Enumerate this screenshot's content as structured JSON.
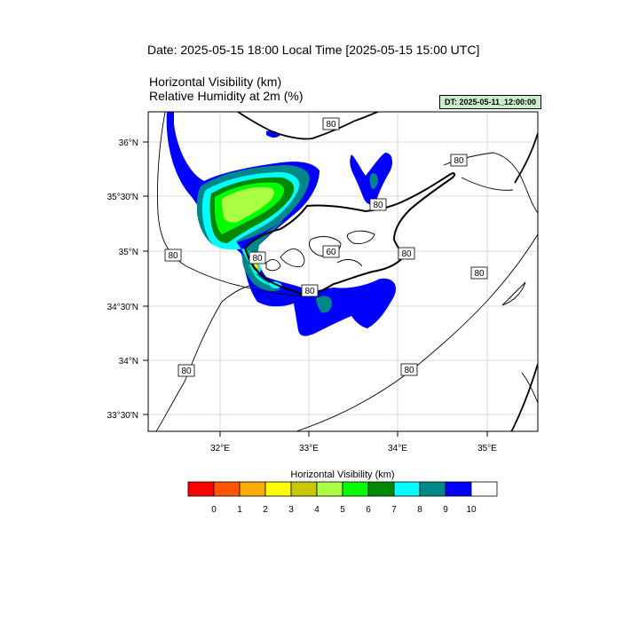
{
  "header": {
    "date_title": "Date: 2025-05-15  18:00 Local Time [2025-05-15  15:00 UTC]",
    "variable_1": "Horizontal Visibility   (km)",
    "variable_2": "Relative Humidity at 2m   (%)",
    "dt_badge": "DT: 2025-05-11_12:00:00"
  },
  "map": {
    "lon_labels": [
      "32°E",
      "33°E",
      "34°E",
      "35°E"
    ],
    "lat_labels": [
      "36°N",
      "35°30'N",
      "35°N",
      "34°30'N",
      "34°N",
      "33°30'N"
    ],
    "contour_labels": [
      "80",
      "80",
      "80",
      "80",
      "60",
      "80",
      "80",
      "80",
      "80",
      "80",
      "80"
    ]
  },
  "colorbar": {
    "title": "Horizontal Visibility  (km)",
    "labels": [
      "0",
      "1",
      "2",
      "3",
      "4",
      "5",
      "6",
      "7",
      "8",
      "9",
      "10"
    ],
    "colors": [
      "#ff0000",
      "#ff5500",
      "#ffaa00",
      "#ffff00",
      "#c8c800",
      "#aaff44",
      "#00ff00",
      "#008800",
      "#00ffff",
      "#008888",
      "#0000ff",
      "#ffffff"
    ]
  }
}
